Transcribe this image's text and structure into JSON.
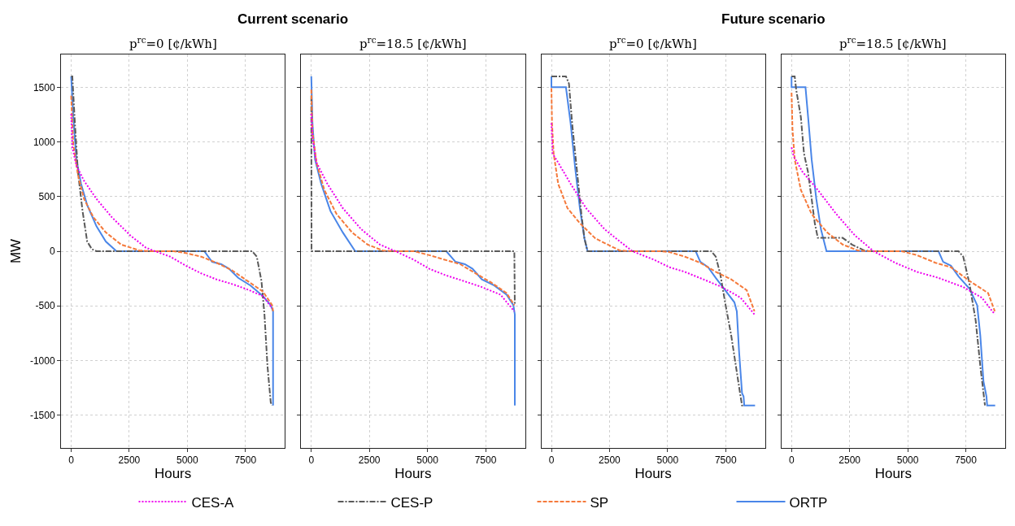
{
  "chart_data": [
    {
      "type": "line",
      "title": "p$^{rc}$=0 [¢/kWh]",
      "xlabel": "Hours",
      "ylabel": "MW",
      "annotations": [
        "Current scenario"
      ],
      "xlim": [
        -438,
        9198
      ],
      "ylim": [
        -1800,
        1800
      ],
      "xticks": [
        0,
        2500,
        5000,
        7500
      ],
      "yticks": [
        -1500,
        -1000,
        -500,
        0,
        500,
        1000,
        1500
      ],
      "grid": true,
      "legend": "bottom",
      "series": [
        {
          "name": "CES-A",
          "color": "#ee00ee",
          "line_style": "dotted",
          "x": [
            0,
            50,
            225,
            555,
            1090,
            1750,
            2550,
            3210,
            3610,
            4270,
            4935,
            5600,
            6260,
            6925,
            7590,
            8255,
            8650
          ],
          "values": [
            1256,
            950,
            783,
            644,
            478,
            311,
            144,
            33,
            0,
            -50,
            -133,
            -203,
            -258,
            -300,
            -350,
            -411,
            -522
          ]
        },
        {
          "name": "CES-P",
          "color": "#595959",
          "line_style": "dashdot",
          "x": [
            0,
            50,
            160,
            290,
            490,
            690,
            890,
            1090,
            7790,
            7990,
            8190,
            8320,
            8450,
            8590,
            8650
          ],
          "values": [
            1600,
            1600,
            1172,
            728,
            367,
            89,
            19,
            0,
            0,
            -50,
            -272,
            -578,
            -1050,
            -1383,
            -1411
          ]
        },
        {
          "name": "SP",
          "color": "#f5793a",
          "line_style": "dashed",
          "x": [
            0,
            90,
            290,
            555,
            955,
            1490,
            2150,
            2945,
            3610,
            4405,
            4935,
            5600,
            6260,
            6925,
            7590,
            8255,
            8650,
            8690
          ],
          "values": [
            1422,
            978,
            700,
            478,
            311,
            172,
            61,
            6,
            0,
            0,
            -17,
            -50,
            -106,
            -175,
            -272,
            -369,
            -494,
            -550
          ]
        },
        {
          "name": "ORTP",
          "color": "#4a86e8",
          "line_style": "solid",
          "x": [
            0,
            90,
            225,
            425,
            690,
            1090,
            1490,
            1950,
            5730,
            6065,
            6460,
            6795,
            7190,
            7720,
            8255,
            8590,
            8690,
            8690
          ],
          "values": [
            1600,
            1228,
            839,
            617,
            422,
            228,
            89,
            0,
            0,
            -97,
            -119,
            -161,
            -244,
            -314,
            -411,
            -494,
            -550,
            -1411
          ]
        }
      ]
    },
    {
      "type": "line",
      "title": "p$^{rc}$=18.5 [¢/kWh]",
      "xlabel": "Hours",
      "xlim": [
        -438,
        9198
      ],
      "ylim": [
        -1800,
        1800
      ],
      "xticks": [
        0,
        2500,
        5000,
        7500
      ],
      "yticks": [
        -1500,
        -1000,
        -500,
        0,
        500,
        1000,
        1500
      ],
      "tick_labels": "x",
      "grid": true,
      "series": [
        {
          "color": "#ee00ee",
          "line_style": "dotted",
          "x": [
            0,
            50,
            225,
            690,
            1355,
            2155,
            2950,
            3620,
            4415,
            5080,
            5745,
            6545,
            7340,
            8140,
            8740
          ],
          "values": [
            1256,
            1033,
            811,
            617,
            394,
            200,
            61,
            0,
            -78,
            -161,
            -217,
            -272,
            -328,
            -397,
            -550
          ]
        },
        {
          "color": "#595959",
          "line_style": "dashdot",
          "x": [
            0,
            10,
            8740,
            8760
          ],
          "values": [
            1422,
            0,
            0,
            -494
          ]
        },
        {
          "color": "#f5793a",
          "line_style": "dashed",
          "x": [
            0,
            50,
            225,
            560,
            1090,
            1755,
            2420,
            3085,
            3620,
            4415,
            5080,
            5745,
            6410,
            7075,
            7740,
            8405,
            8740
          ],
          "values": [
            1478,
            1089,
            811,
            561,
            339,
            172,
            61,
            6,
            0,
            0,
            -36,
            -78,
            -119,
            -203,
            -286,
            -383,
            -494
          ]
        },
        {
          "color": "#4a86e8",
          "line_style": "solid",
          "x": [
            0,
            50,
            160,
            425,
            825,
            1355,
            1890,
            5810,
            6210,
            6610,
            6940,
            7340,
            7875,
            8405,
            8700,
            8760,
            8760
          ],
          "values": [
            1600,
            1172,
            839,
            617,
            367,
            172,
            0,
            0,
            -97,
            -119,
            -161,
            -258,
            -314,
            -397,
            -494,
            -578,
            -1411
          ]
        }
      ]
    },
    {
      "type": "line",
      "title": "p$^{rc}$=0 [¢/kWh]",
      "xlabel": "Hours",
      "annotations": [
        "Future scenario"
      ],
      "xlim": [
        -438,
        9198
      ],
      "ylim": [
        -1800,
        1800
      ],
      "xticks": [
        0,
        2500,
        5000,
        7500
      ],
      "yticks": [
        -1500,
        -1000,
        -500,
        0,
        500,
        1000,
        1500
      ],
      "tick_labels": "x",
      "grid": true,
      "series": [
        {
          "color": "#ee00ee",
          "line_style": "dotted",
          "x": [
            0,
            50,
            290,
            825,
            1490,
            2290,
            2950,
            3485,
            4415,
            5080,
            5745,
            6545,
            7340,
            8140,
            8740
          ],
          "values": [
            1172,
            894,
            811,
            617,
            394,
            200,
            89,
            0,
            -78,
            -147,
            -189,
            -258,
            -328,
            -425,
            -578
          ]
        },
        {
          "color": "#595959",
          "line_style": "dashdot",
          "x": [
            0,
            625,
            755,
            890,
            1090,
            1290,
            1420,
            1555,
            6875,
            7075,
            7275,
            7475,
            7740,
            7940,
            8140,
            8205,
            8300
          ],
          "values": [
            1600,
            1600,
            1533,
            1172,
            756,
            339,
            117,
            0,
            0,
            -50,
            -217,
            -467,
            -772,
            -1050,
            -1328,
            -1411,
            -1411
          ]
        },
        {
          "color": "#f5793a",
          "line_style": "dashed",
          "x": [
            0,
            25,
            95,
            290,
            690,
            1225,
            1890,
            2555,
            2950,
            3485,
            4680,
            5080,
            5745,
            6410,
            7075,
            7740,
            8405,
            8740
          ],
          "values": [
            1492,
            1172,
            894,
            617,
            394,
            256,
            117,
            47,
            6,
            0,
            0,
            -8,
            -50,
            -106,
            -189,
            -258,
            -356,
            -550
          ]
        },
        {
          "color": "#4a86e8",
          "line_style": "solid",
          "x": [
            0,
            0,
            625,
            825,
            1025,
            1225,
            1420,
            1555,
            6210,
            6410,
            6745,
            7075,
            7475,
            7875,
            7980,
            8075,
            8205,
            8270,
            8300,
            8765
          ],
          "values": [
            1600,
            1500,
            1500,
            1172,
            756,
            394,
            117,
            0,
            0,
            -97,
            -147,
            -244,
            -356,
            -467,
            -550,
            -911,
            -1300,
            -1328,
            -1411,
            -1411
          ]
        }
      ]
    },
    {
      "type": "line",
      "title": "p$^{rc}$=18.5 [¢/kWh]",
      "xlabel": "Hours",
      "xlim": [
        -438,
        9198
      ],
      "ylim": [
        -1800,
        1800
      ],
      "xticks": [
        0,
        2500,
        5000,
        7500
      ],
      "yticks": [
        -1500,
        -1000,
        -500,
        0,
        500,
        1000,
        1500
      ],
      "tick_labels": "x",
      "grid": true,
      "series": [
        {
          "color": "#ee00ee",
          "line_style": "dotted",
          "x": [
            0,
            95,
            465,
            1130,
            1930,
            2730,
            3530,
            4460,
            5395,
            6325,
            7390,
            8190,
            8750
          ],
          "values": [
            950,
            867,
            728,
            561,
            339,
            144,
            0,
            -106,
            -189,
            -244,
            -328,
            -425,
            -578
          ]
        },
        {
          "color": "#595959",
          "line_style": "dashdot",
          "x": [
            0,
            135,
            200,
            400,
            535,
            705,
            865,
            1000,
            1130,
            2200,
            2600,
            3130,
            3530,
            7190,
            7390,
            7660,
            7925,
            8125,
            8325
          ],
          "values": [
            1600,
            1600,
            1478,
            1228,
            894,
            728,
            478,
            256,
            122,
            122,
            61,
            6,
            0,
            0,
            -50,
            -300,
            -633,
            -1050,
            -1411
          ]
        },
        {
          "color": "#f5793a",
          "line_style": "dashed",
          "x": [
            0,
            40,
            135,
            400,
            865,
            1530,
            2200,
            2865,
            3395,
            4730,
            5395,
            6195,
            6860,
            7660,
            8460,
            8750
          ],
          "values": [
            1450,
            1117,
            839,
            561,
            339,
            172,
            61,
            6,
            0,
            0,
            -36,
            -106,
            -147,
            -272,
            -383,
            -550
          ]
        },
        {
          "color": "#4a86e8",
          "line_style": "solid",
          "x": [
            0,
            0,
            600,
            735,
            865,
            1065,
            1265,
            1505,
            6325,
            6525,
            6860,
            7190,
            7660,
            7990,
            8125,
            8260,
            8390,
            8420,
            8765
          ],
          "values": [
            1600,
            1500,
            1500,
            1172,
            839,
            478,
            200,
            0,
            0,
            -97,
            -133,
            -231,
            -342,
            -494,
            -772,
            -1189,
            -1328,
            -1411,
            -1411
          ]
        }
      ]
    }
  ]
}
